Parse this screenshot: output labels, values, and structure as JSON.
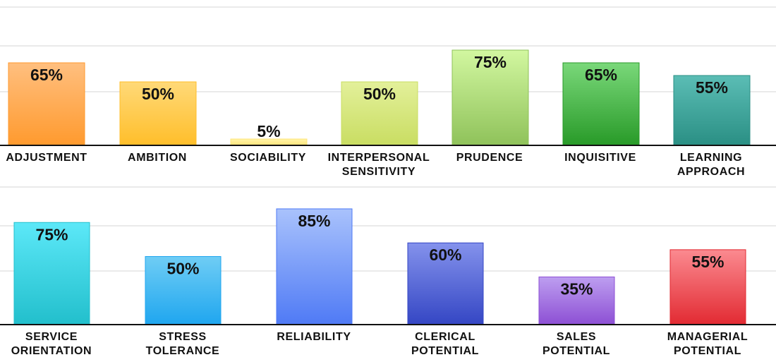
{
  "chart_data": [
    {
      "type": "bar",
      "categories": [
        "ADJUSTMENT",
        "AMBITION",
        "SOCIABILITY",
        "INTERPERSONAL SENSITIVITY",
        "PRUDENCE",
        "INQUISITIVE",
        "LEARNING APPROACH"
      ],
      "values": [
        65,
        50,
        5,
        50,
        75,
        65,
        55
      ],
      "value_labels": [
        "65%",
        "50%",
        "5%",
        "50%",
        "75%",
        "65%",
        "55%"
      ],
      "ylim": [
        0,
        100
      ],
      "grid": true,
      "colors": [
        [
          "#ffbf7f",
          "#ff9a2e"
        ],
        [
          "#ffd978",
          "#ffbe2a"
        ],
        [
          "#fff4a8",
          "#ffe47a"
        ],
        [
          "#e3f09a",
          "#c9dd62"
        ],
        [
          "#d2f7a0",
          "#8fc25a"
        ],
        [
          "#7ad87a",
          "#289a28"
        ],
        [
          "#5bbdb5",
          "#2a8f84"
        ]
      ]
    },
    {
      "type": "bar",
      "categories": [
        "SERVICE ORIENTATION",
        "STRESS TOLERANCE",
        "RELIABILITY",
        "CLERICAL POTENTIAL",
        "SALES POTENTIAL",
        "MANAGERIAL POTENTIAL"
      ],
      "values": [
        75,
        50,
        85,
        60,
        35,
        55
      ],
      "value_labels": [
        "75%",
        "50%",
        "85%",
        "60%",
        "35%",
        "55%"
      ],
      "ylim": [
        0,
        100
      ],
      "grid": true,
      "colors": [
        [
          "#5ce8f8",
          "#22bfcc"
        ],
        [
          "#6fcdf5",
          "#1fa6ef"
        ],
        [
          "#a9c2fc",
          "#4f7af5"
        ],
        [
          "#8492ec",
          "#3446c4"
        ],
        [
          "#bd9ef0",
          "#8d4fd4"
        ],
        [
          "#fb8a90",
          "#e22a32"
        ]
      ]
    }
  ]
}
